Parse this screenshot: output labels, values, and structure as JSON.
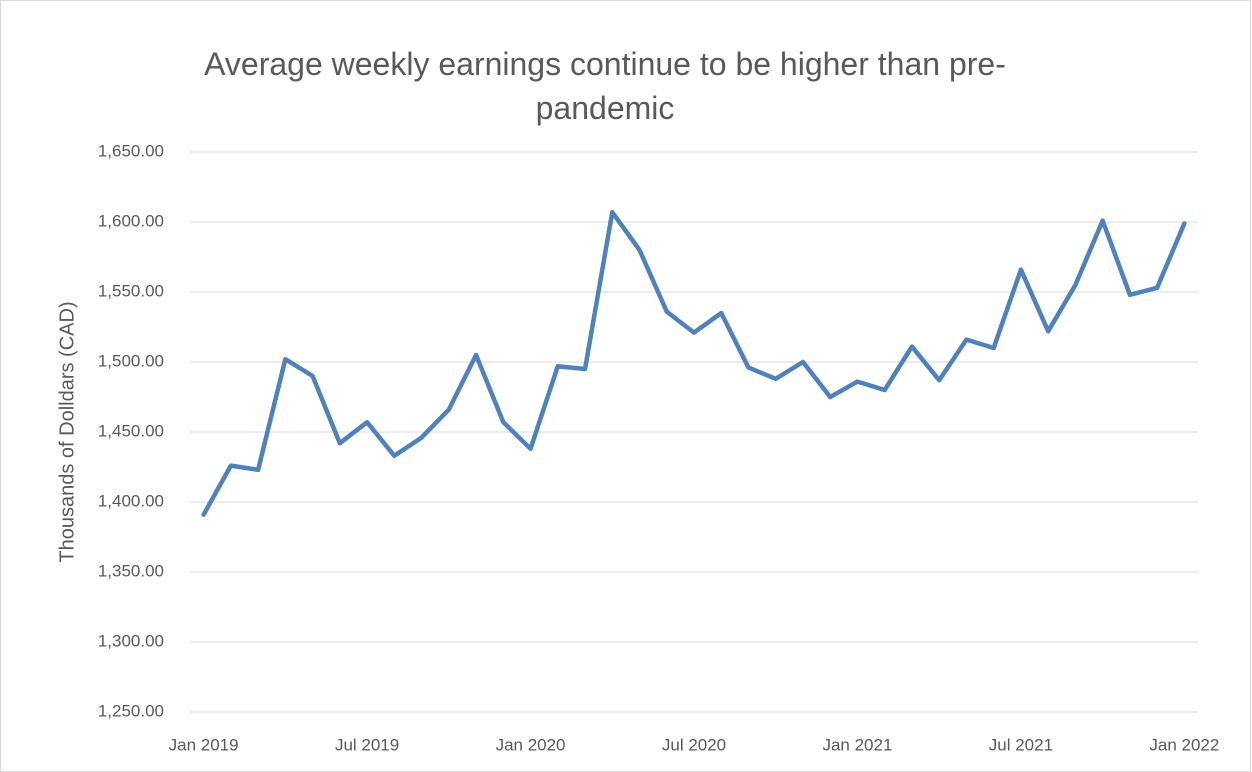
{
  "chart_data": {
    "type": "line",
    "title": "Average weekly earnings continue to be higher than pre-pandemic",
    "y_label": "Thousands of Dolldars (CAD)",
    "categories": [
      "Jan 2019",
      null,
      null,
      null,
      null,
      null,
      "Jul 2019",
      null,
      null,
      null,
      null,
      null,
      "Jan 2020",
      null,
      null,
      null,
      null,
      null,
      "Jul 2020",
      null,
      null,
      null,
      null,
      null,
      "Jan 2021",
      null,
      null,
      null,
      null,
      null,
      "Jul 2021",
      null,
      null,
      null,
      null,
      null,
      "Jan 2022"
    ],
    "series": [
      {
        "name": "Average weekly earnings",
        "color": "#4f81bd",
        "values": [
          1391,
          1426,
          1423,
          1502,
          1490,
          1442,
          1457,
          1433,
          1446,
          1466,
          1505,
          1457,
          1438,
          1497,
          1495,
          1607,
          1580,
          1536,
          1521,
          1535,
          1496,
          1488,
          1500,
          1475,
          1486,
          1480,
          1511,
          1487,
          1516,
          1510,
          1566,
          1522,
          1555,
          1601,
          1548,
          1553,
          1599
        ]
      }
    ],
    "ylim": [
      1250,
      1650
    ],
    "yticks": [
      {
        "value": 1250,
        "label": "1,250.00"
      },
      {
        "value": 1300,
        "label": "1,300.00"
      },
      {
        "value": 1350,
        "label": "1,350.00"
      },
      {
        "value": 1400,
        "label": "1,400.00"
      },
      {
        "value": 1450,
        "label": "1,450.00"
      },
      {
        "value": 1500,
        "label": "1,500.00"
      },
      {
        "value": 1550,
        "label": "1,550.00"
      },
      {
        "value": 1600,
        "label": "1,600.00"
      },
      {
        "value": 1650,
        "label": "1,650.00"
      }
    ],
    "grid": true
  }
}
